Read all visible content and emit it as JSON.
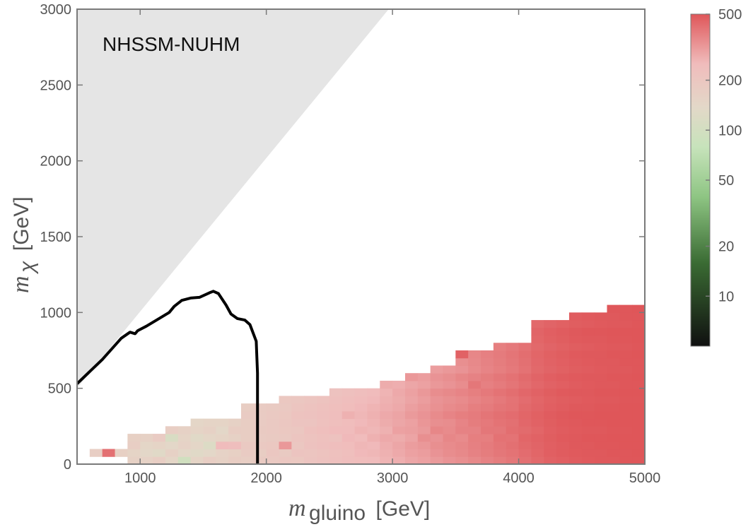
{
  "chart_data": {
    "type": "heatmap",
    "title": "",
    "annotation": "NHSSM-NUHM",
    "xlabel": {
      "main": "m",
      "sub": "gluino",
      "unit": "[GeV]"
    },
    "ylabel": {
      "main": "m",
      "sub": "χ",
      "unit": "[GeV]"
    },
    "xlim": [
      500,
      5000
    ],
    "ylim": [
      0,
      3000
    ],
    "xticks": [
      1000,
      2000,
      3000,
      4000,
      5000
    ],
    "yticks": [
      0,
      500,
      1000,
      1500,
      2000,
      2500,
      3000
    ],
    "grid": false,
    "excluded_region": {
      "description_color": "#e5e5e5",
      "boundary": [
        [
          500,
          500
        ],
        [
          2970,
          3000
        ]
      ]
    },
    "contour_line": [
      [
        500,
        530
      ],
      [
        700,
        690
      ],
      [
        850,
        830
      ],
      [
        920,
        870
      ],
      [
        960,
        860
      ],
      [
        980,
        880
      ],
      [
        1050,
        910
      ],
      [
        1150,
        960
      ],
      [
        1230,
        1000
      ],
      [
        1270,
        1040
      ],
      [
        1330,
        1080
      ],
      [
        1400,
        1095
      ],
      [
        1470,
        1100
      ],
      [
        1550,
        1130
      ],
      [
        1580,
        1140
      ],
      [
        1620,
        1125
      ],
      [
        1680,
        1050
      ],
      [
        1720,
        990
      ],
      [
        1770,
        960
      ],
      [
        1830,
        950
      ],
      [
        1870,
        920
      ],
      [
        1920,
        810
      ],
      [
        1930,
        600
      ],
      [
        1930,
        0
      ]
    ],
    "colorbar": {
      "scale": "log",
      "range": [
        5,
        500
      ],
      "ticks": [
        10,
        20,
        50,
        100,
        200,
        500
      ],
      "colors": [
        "#101010",
        "#3a6b33",
        "#8ec583",
        "#c7e3bb",
        "#e3d8c8",
        "#f0bcbc",
        "#df5659"
      ]
    },
    "heatmap_cell_width": 100,
    "heatmap_cell_height": 50,
    "heatmap_columns": [
      {
        "x": 650,
        "max_y": 100,
        "values": [
          170
        ]
      },
      {
        "x": 750,
        "max_y": 100,
        "values": [
          420
        ]
      },
      {
        "x": 850,
        "max_y": 100,
        "values": [
          165
        ]
      },
      {
        "x": 950,
        "max_y": 200,
        "values": [
          160,
          150,
          170,
          165
        ]
      },
      {
        "x": 1050,
        "max_y": 200,
        "values": [
          155,
          140,
          145,
          160
        ]
      },
      {
        "x": 1150,
        "max_y": 200,
        "values": [
          170,
          130,
          150,
          180
        ]
      },
      {
        "x": 1250,
        "max_y": 250,
        "values": [
          145,
          160,
          140,
          110,
          170
        ]
      },
      {
        "x": 1350,
        "max_y": 250,
        "values": [
          95,
          140,
          155,
          150,
          160
        ]
      },
      {
        "x": 1450,
        "max_y": 300,
        "values": [
          150,
          130,
          145,
          130,
          150,
          145
        ]
      },
      {
        "x": 1550,
        "max_y": 300,
        "values": [
          170,
          140,
          120,
          145,
          160,
          150
        ]
      },
      {
        "x": 1650,
        "max_y": 300,
        "values": [
          160,
          155,
          250,
          150,
          140,
          150
        ]
      },
      {
        "x": 1750,
        "max_y": 300,
        "values": [
          175,
          165,
          240,
          160,
          175,
          160
        ]
      },
      {
        "x": 1850,
        "max_y": 400,
        "values": [
          170,
          180,
          190,
          175,
          175,
          175,
          180,
          175
        ]
      },
      {
        "x": 1950,
        "max_y": 400,
        "values": [
          185,
          175,
          190,
          180,
          185,
          180,
          180,
          180
        ]
      },
      {
        "x": 2050,
        "max_y": 400,
        "values": [
          190,
          200,
          195,
          185,
          190,
          190,
          190,
          185
        ]
      },
      {
        "x": 2150,
        "max_y": 450,
        "values": [
          200,
          185,
          320,
          190,
          195,
          200,
          195,
          190,
          195
        ]
      },
      {
        "x": 2250,
        "max_y": 450,
        "values": [
          195,
          210,
          200,
          205,
          200,
          210,
          215,
          205,
          200
        ]
      },
      {
        "x": 2350,
        "max_y": 450,
        "values": [
          210,
          205,
          220,
          215,
          225,
          210,
          220,
          215,
          205
        ]
      },
      {
        "x": 2450,
        "max_y": 450,
        "values": [
          220,
          215,
          230,
          225,
          235,
          225,
          230,
          225,
          215
        ]
      },
      {
        "x": 2550,
        "max_y": 500,
        "values": [
          230,
          225,
          240,
          220,
          250,
          235,
          240,
          235,
          230,
          220
        ]
      },
      {
        "x": 2650,
        "max_y": 500,
        "values": [
          240,
          235,
          245,
          255,
          250,
          245,
          270,
          245,
          240,
          230
        ]
      },
      {
        "x": 2750,
        "max_y": 500,
        "values": [
          245,
          255,
          260,
          250,
          265,
          255,
          260,
          255,
          250,
          240
        ]
      },
      {
        "x": 2850,
        "max_y": 500,
        "values": [
          250,
          260,
          255,
          270,
          260,
          265,
          270,
          265,
          255,
          250
        ]
      },
      {
        "x": 2950,
        "max_y": 550,
        "values": [
          265,
          270,
          275,
          285,
          270,
          280,
          285,
          275,
          270,
          265,
          280
        ]
      },
      {
        "x": 3050,
        "max_y": 550,
        "values": [
          275,
          285,
          290,
          280,
          300,
          290,
          295,
          285,
          280,
          285,
          275
        ]
      },
      {
        "x": 3150,
        "max_y": 600,
        "values": [
          290,
          300,
          310,
          295,
          305,
          300,
          315,
          305,
          295,
          300,
          290,
          320
        ]
      },
      {
        "x": 3250,
        "max_y": 600,
        "values": [
          300,
          310,
          320,
          340,
          315,
          325,
          330,
          320,
          310,
          320,
          300,
          310
        ]
      },
      {
        "x": 3350,
        "max_y": 650,
        "values": [
          315,
          330,
          340,
          330,
          360,
          340,
          350,
          335,
          330,
          345,
          320,
          330,
          310
        ]
      },
      {
        "x": 3450,
        "max_y": 650,
        "values": [
          330,
          345,
          350,
          360,
          350,
          345,
          365,
          350,
          340,
          355,
          330,
          340,
          320
        ]
      },
      {
        "x": 3550,
        "max_y": 750,
        "values": [
          340,
          355,
          360,
          350,
          370,
          365,
          380,
          360,
          350,
          365,
          345,
          360,
          330,
          340,
          460
        ]
      },
      {
        "x": 3650,
        "max_y": 750,
        "values": [
          355,
          370,
          375,
          380,
          370,
          385,
          390,
          380,
          365,
          380,
          400,
          370,
          350,
          355,
          360
        ]
      },
      {
        "x": 3750,
        "max_y": 750,
        "values": [
          370,
          385,
          390,
          380,
          400,
          395,
          405,
          390,
          380,
          395,
          375,
          385,
          365,
          370,
          375
        ]
      },
      {
        "x": 3850,
        "max_y": 800,
        "values": [
          385,
          400,
          405,
          415,
          400,
          410,
          420,
          405,
          395,
          410,
          390,
          400,
          380,
          385,
          390,
          380
        ]
      },
      {
        "x": 3950,
        "max_y": 800,
        "values": [
          400,
          410,
          420,
          410,
          425,
          420,
          430,
          415,
          410,
          425,
          405,
          415,
          395,
          400,
          405,
          395
        ]
      },
      {
        "x": 4050,
        "max_y": 800,
        "values": [
          420,
          430,
          440,
          450,
          435,
          445,
          450,
          440,
          430,
          445,
          425,
          435,
          415,
          420,
          425,
          415
        ]
      },
      {
        "x": 4150,
        "max_y": 950,
        "values": [
          440,
          450,
          455,
          460,
          450,
          460,
          465,
          455,
          450,
          460,
          445,
          455,
          440,
          445,
          450,
          440,
          450,
          455,
          440
        ]
      },
      {
        "x": 4250,
        "max_y": 950,
        "values": [
          460,
          470,
          470,
          475,
          470,
          475,
          480,
          470,
          465,
          475,
          460,
          470,
          455,
          460,
          465,
          455,
          465,
          470,
          455
        ]
      },
      {
        "x": 4350,
        "max_y": 950,
        "values": [
          470,
          480,
          480,
          485,
          480,
          485,
          490,
          480,
          475,
          485,
          470,
          480,
          465,
          470,
          475,
          465,
          475,
          480,
          465
        ]
      },
      {
        "x": 4450,
        "max_y": 1000,
        "values": [
          480,
          485,
          490,
          490,
          485,
          490,
          495,
          490,
          480,
          490,
          480,
          485,
          475,
          480,
          485,
          475,
          485,
          490,
          475,
          480
        ]
      },
      {
        "x": 4550,
        "max_y": 1000,
        "values": [
          485,
          490,
          490,
          495,
          490,
          495,
          495,
          490,
          485,
          490,
          485,
          490,
          480,
          485,
          490,
          480,
          490,
          495,
          480,
          485
        ]
      },
      {
        "x": 4650,
        "max_y": 1000,
        "values": [
          490,
          490,
          495,
          495,
          490,
          495,
          500,
          495,
          490,
          495,
          490,
          490,
          485,
          490,
          490,
          485,
          490,
          495,
          485,
          490
        ]
      },
      {
        "x": 4750,
        "max_y": 1050,
        "values": [
          490,
          495,
          495,
          500,
          495,
          500,
          500,
          495,
          490,
          495,
          490,
          495,
          490,
          490,
          495,
          490,
          495,
          500,
          490,
          490,
          495
        ]
      },
      {
        "x": 4850,
        "max_y": 1050,
        "values": [
          495,
          495,
          500,
          500,
          495,
          500,
          500,
          500,
          495,
          500,
          495,
          495,
          490,
          495,
          495,
          490,
          495,
          500,
          490,
          495,
          495
        ]
      },
      {
        "x": 4950,
        "max_y": 1050,
        "values": [
          495,
          500,
          500,
          500,
          500,
          500,
          500,
          500,
          495,
          500,
          495,
          500,
          495,
          495,
          500,
          495,
          500,
          500,
          495,
          495,
          500
        ]
      }
    ]
  }
}
